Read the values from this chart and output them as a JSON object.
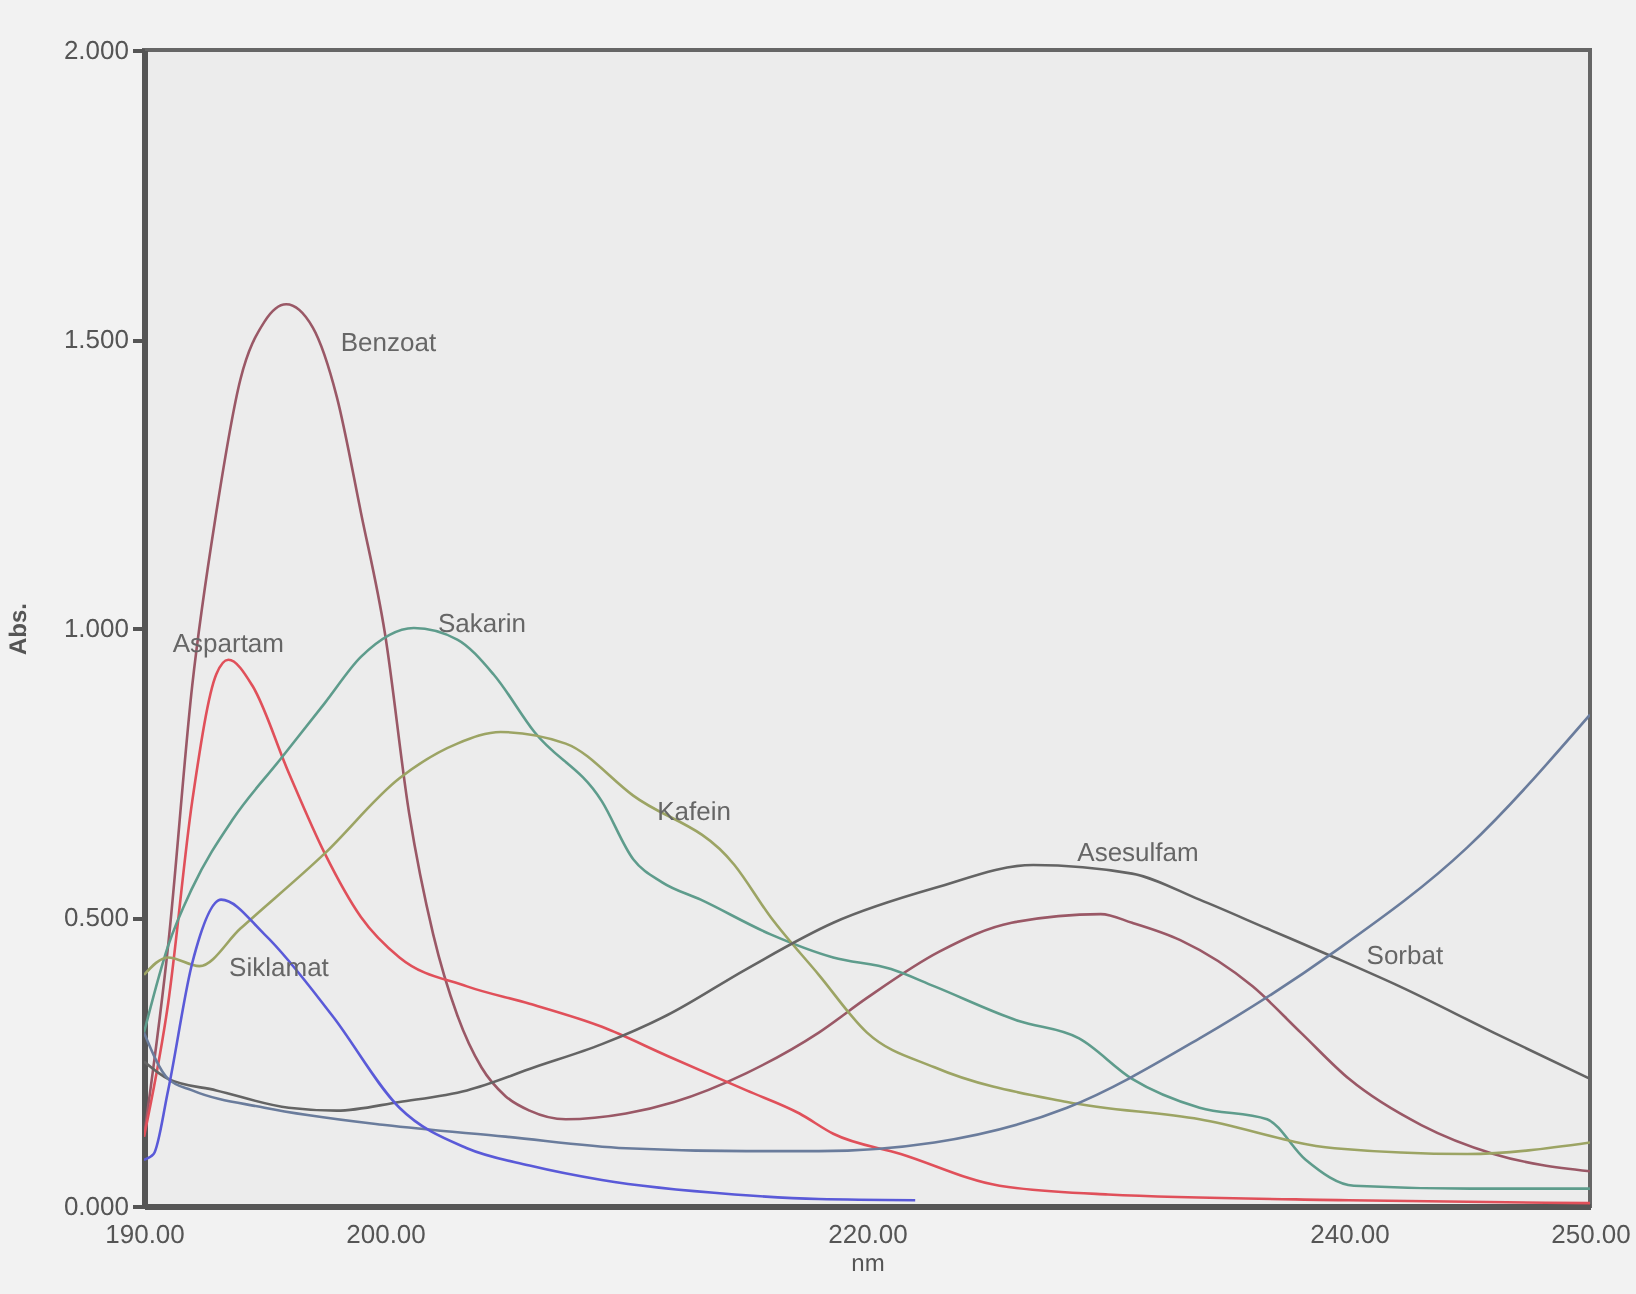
{
  "chart_data": {
    "type": "line",
    "xlabel": "nm",
    "ylabel": "Abs.",
    "xlim": [
      190,
      250
    ],
    "ylim": [
      0,
      2
    ],
    "xticks": [
      {
        "value": 190,
        "label": "190.00"
      },
      {
        "value": 200,
        "label": "200.00"
      },
      {
        "value": 220,
        "label": "220.00"
      },
      {
        "value": 240,
        "label": "240.00"
      },
      {
        "value": 250,
        "label": "250.00"
      }
    ],
    "yticks": [
      {
        "value": 0,
        "label": "0.000"
      },
      {
        "value": 0.5,
        "label": "0.500"
      },
      {
        "value": 1,
        "label": "1.000"
      },
      {
        "value": 1.5,
        "label": "1.500"
      },
      {
        "value": 2,
        "label": "2.000"
      }
    ],
    "grid": false,
    "marker": "none",
    "line_style": "solid",
    "series": [
      {
        "name": "Benzoat",
        "color": "#9a5866",
        "x": [
          190,
          191,
          192,
          193,
          194,
          195,
          195.9,
          197,
          198,
          199,
          200,
          201,
          202,
          203,
          204,
          205,
          206,
          207.5,
          210,
          212,
          215,
          218,
          220,
          223,
          226,
          229.7,
          231,
          233,
          236,
          238,
          240,
          243,
          246,
          250
        ],
        "values": [
          0.12,
          0.45,
          0.9,
          1.2,
          1.43,
          1.53,
          1.56,
          1.52,
          1.4,
          1.2,
          0.99,
          0.68,
          0.47,
          0.33,
          0.24,
          0.19,
          0.165,
          0.15,
          0.16,
          0.18,
          0.23,
          0.3,
          0.36,
          0.44,
          0.49,
          0.505,
          0.49,
          0.46,
          0.38,
          0.3,
          0.22,
          0.14,
          0.09,
          0.06
        ]
      },
      {
        "name": "Aspartam",
        "color": "#e0505a",
        "x": [
          190,
          191,
          192,
          193,
          193.5,
          194.5,
          196,
          197.5,
          199,
          200.6,
          203.4,
          206,
          209,
          211.7,
          215,
          217.2,
          218.6,
          221.4,
          225.5,
          230,
          240,
          250
        ],
        "values": [
          0.12,
          0.35,
          0.7,
          0.92,
          0.945,
          0.9,
          0.75,
          0.61,
          0.5,
          0.43,
          0.38,
          0.35,
          0.31,
          0.26,
          0.2,
          0.16,
          0.125,
          0.09,
          0.035,
          0.02,
          0.01,
          0.005
        ]
      },
      {
        "name": "Sakarin",
        "color": "#5e9c8c",
        "x": [
          190,
          191,
          192,
          193.7,
          195.6,
          197.5,
          199,
          201.2,
          203,
          204.5,
          206.2,
          209,
          210.3,
          211.5,
          213.1,
          216,
          218.6,
          221,
          222.8,
          226.3,
          228.8,
          231,
          233.8,
          236.6,
          238.2,
          240.2,
          245,
          250
        ],
        "values": [
          0.3,
          0.45,
          0.55,
          0.67,
          0.77,
          0.87,
          0.95,
          1.0,
          0.98,
          0.92,
          0.82,
          0.7,
          0.6,
          0.56,
          0.53,
          0.47,
          0.43,
          0.41,
          0.38,
          0.32,
          0.29,
          0.22,
          0.17,
          0.15,
          0.08,
          0.035,
          0.03,
          0.03
        ]
      },
      {
        "name": "Kafein",
        "color": "#9ca464",
        "x": [
          190,
          191,
          192.3,
          194,
          197.5,
          200.6,
          203,
          204.8,
          207.5,
          210.3,
          214.5,
          216,
          218,
          220,
          222.8,
          228.3,
          233.8,
          239.4,
          244.9,
          250
        ],
        "values": [
          0.4,
          0.43,
          0.415,
          0.48,
          0.61,
          0.74,
          0.8,
          0.82,
          0.8,
          0.71,
          0.59,
          0.5,
          0.4,
          0.3,
          0.24,
          0.18,
          0.15,
          0.1,
          0.09,
          0.11
        ]
      },
      {
        "name": "Asesulfam",
        "color": "#646464",
        "x": [
          190,
          191,
          193,
          196,
          198,
          200.6,
          203.4,
          206.2,
          209,
          211.7,
          215,
          218.6,
          222.8,
          226.9,
          231,
          233.8,
          236.6,
          239.4,
          242.1,
          246,
          250
        ],
        "values": [
          0.25,
          0.22,
          0.2,
          0.17,
          0.165,
          0.18,
          0.2,
          0.24,
          0.28,
          0.33,
          0.41,
          0.49,
          0.55,
          0.59,
          0.575,
          0.53,
          0.48,
          0.43,
          0.38,
          0.3,
          0.22
        ]
      },
      {
        "name": "Sorbat",
        "color": "#6a7c9c",
        "x": [
          190,
          191,
          192,
          195,
          200,
          205,
          210,
          215,
          218,
          222.8,
          228.3,
          233.8,
          239.4,
          244.9,
          250
        ],
        "values": [
          0.3,
          0.22,
          0.2,
          0.17,
          0.14,
          0.12,
          0.1,
          0.095,
          0.095,
          0.11,
          0.17,
          0.29,
          0.44,
          0.62,
          0.85
        ]
      },
      {
        "name": "Siklamat",
        "color": "#5a5ad8",
        "x": [
          190,
          190.4,
          191,
          192,
          193.2,
          195,
          197.8,
          200.6,
          203.4,
          206,
          209,
          214.5,
          218,
          222
        ],
        "values": [
          0.08,
          0.09,
          0.2,
          0.42,
          0.53,
          0.47,
          0.33,
          0.17,
          0.1,
          0.07,
          0.045,
          0.02,
          0.012,
          0.01
        ]
      }
    ]
  }
}
